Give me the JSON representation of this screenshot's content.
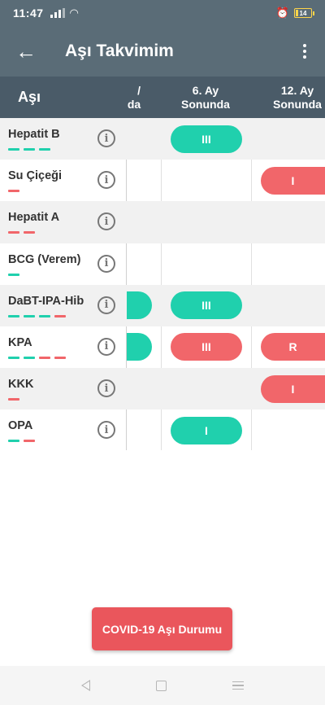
{
  "status": {
    "time": "11:47",
    "battery": "14"
  },
  "app_bar": {
    "title": "Aşı Takvimim"
  },
  "table": {
    "first_col": "Aşı",
    "columns": [
      {
        "line1": "",
        "line2": "da"
      },
      {
        "line1": "6. Ay",
        "line2": "Sonunda"
      },
      {
        "line1": "12. Ay",
        "line2": "Sonunda"
      }
    ],
    "rows": [
      {
        "name": "Hepatit B",
        "dashes": [
          "#20d0ad",
          "#20d0ad",
          "#20d0ad"
        ],
        "cells": [
          null,
          {
            "label": "III",
            "color": "green"
          },
          null
        ]
      },
      {
        "name": "Su Çiçeği",
        "dashes": [
          "#f1666a"
        ],
        "cells": [
          null,
          null,
          {
            "label": "I",
            "color": "red"
          }
        ]
      },
      {
        "name": "Hepatit A",
        "dashes": [
          "#f1666a",
          "#f1666a"
        ],
        "cells": [
          null,
          null,
          null
        ]
      },
      {
        "name": "BCG (Verem)",
        "dashes": [
          "#20d0ad"
        ],
        "cells": [
          null,
          null,
          null
        ]
      },
      {
        "name": "DaBT-IPA-Hib",
        "dashes": [
          "#20d0ad",
          "#20d0ad",
          "#20d0ad",
          "#f1666a"
        ],
        "cells": [
          {
            "label": "",
            "color": "green"
          },
          {
            "label": "III",
            "color": "green"
          },
          null
        ]
      },
      {
        "name": "KPA",
        "dashes": [
          "#20d0ad",
          "#20d0ad",
          "#f1666a",
          "#f1666a"
        ],
        "cells": [
          {
            "label": "",
            "color": "green"
          },
          {
            "label": "III",
            "color": "red"
          },
          {
            "label": "R",
            "color": "red"
          }
        ]
      },
      {
        "name": "KKK",
        "dashes": [
          "#f1666a"
        ],
        "cells": [
          null,
          null,
          {
            "label": "I",
            "color": "red"
          }
        ]
      },
      {
        "name": "OPA",
        "dashes": [
          "#20d0ad",
          "#f1666a"
        ],
        "cells": [
          null,
          {
            "label": "I",
            "color": "green"
          },
          null
        ]
      }
    ]
  },
  "covid_button": {
    "label": "COVID-19 Aşı Durumu"
  }
}
